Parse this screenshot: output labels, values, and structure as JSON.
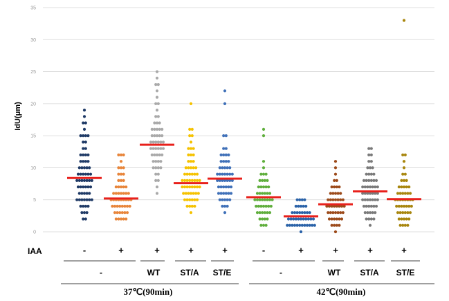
{
  "chart_data": {
    "type": "scatter",
    "ylabel": "IdU(μm)",
    "ylim": [
      0,
      35
    ],
    "yticks": [
      "0",
      "5",
      "10",
      "15",
      "20",
      "25",
      "30",
      "35"
    ],
    "grid": true,
    "row_label": "IAA",
    "groups": [
      {
        "iaa": "-",
        "genotype": "-",
        "condition": "37℃(90min)",
        "color": "#1f3a66",
        "mean": 8.4,
        "values": [
          19,
          18,
          17,
          17,
          16,
          15,
          15,
          15,
          15,
          14,
          14,
          13,
          13,
          12,
          12,
          12,
          12,
          11,
          11,
          11,
          11,
          10,
          10,
          10,
          10,
          10,
          9,
          9,
          9,
          9,
          9,
          9,
          8,
          8,
          8,
          8,
          8,
          8,
          8,
          7,
          7,
          7,
          7,
          7,
          7,
          6,
          6,
          6,
          6,
          6,
          5,
          5,
          5,
          5,
          5,
          5,
          5,
          4,
          4,
          4,
          4,
          3,
          3,
          3,
          2,
          2
        ]
      },
      {
        "iaa": "+",
        "genotype": "-",
        "condition": "37℃(90min)",
        "color": "#e8853a",
        "mean": 5.2,
        "values": [
          12,
          12,
          12,
          11,
          10,
          10,
          10,
          9,
          9,
          9,
          8,
          8,
          8,
          7,
          7,
          7,
          7,
          7,
          6,
          6,
          6,
          6,
          6,
          6,
          6,
          5,
          5,
          5,
          5,
          5,
          5,
          5,
          5,
          5,
          4,
          4,
          4,
          4,
          4,
          4,
          4,
          4,
          3,
          3,
          3,
          3,
          3,
          3,
          2,
          2,
          2,
          2,
          2
        ]
      },
      {
        "iaa": "+",
        "genotype": "WT",
        "condition": "37℃(90min)",
        "color": "#a9a9a9",
        "mean": 13.6,
        "values": [
          25,
          24,
          23,
          23,
          22,
          21,
          20,
          20,
          19,
          18,
          18,
          17,
          17,
          17,
          16,
          16,
          16,
          16,
          16,
          15,
          15,
          15,
          15,
          15,
          14,
          14,
          14,
          14,
          14,
          14,
          13,
          13,
          13,
          13,
          13,
          13,
          12,
          12,
          12,
          12,
          12,
          11,
          11,
          11,
          11,
          10,
          10,
          10,
          10,
          9,
          9,
          8,
          8,
          7,
          6
        ]
      },
      {
        "iaa": "+",
        "genotype": "ST/A",
        "condition": "37℃(90min)",
        "color": "#f5c200",
        "mean": 7.6,
        "values": [
          20,
          16,
          16,
          15,
          15,
          14,
          13,
          13,
          13,
          12,
          12,
          12,
          11,
          11,
          11,
          10,
          10,
          10,
          10,
          10,
          9,
          9,
          9,
          9,
          9,
          9,
          8,
          8,
          8,
          8,
          8,
          8,
          8,
          8,
          7,
          7,
          7,
          7,
          7,
          7,
          7,
          7,
          6,
          6,
          6,
          6,
          6,
          6,
          6,
          5,
          5,
          5,
          5,
          5,
          5,
          4,
          4,
          4,
          4,
          3
        ]
      },
      {
        "iaa": "+",
        "genotype": "ST/E",
        "condition": "37℃(90min)",
        "color": "#3f70b8",
        "mean": 8.3,
        "values": [
          22,
          20,
          15,
          15,
          13,
          13,
          12,
          12,
          12,
          12,
          11,
          11,
          11,
          11,
          10,
          10,
          10,
          10,
          10,
          9,
          9,
          9,
          9,
          9,
          9,
          9,
          8,
          8,
          8,
          8,
          8,
          8,
          8,
          7,
          7,
          7,
          7,
          7,
          7,
          6,
          6,
          6,
          6,
          6,
          6,
          5,
          5,
          5,
          5,
          5,
          4,
          4,
          4,
          3
        ]
      },
      {
        "iaa": "-",
        "genotype": "-",
        "condition": "42℃(90min)",
        "color": "#5fae3c",
        "mean": 5.4,
        "values": [
          16,
          15,
          11,
          10,
          9,
          9,
          9,
          8,
          8,
          8,
          8,
          7,
          7,
          7,
          7,
          7,
          6,
          6,
          6,
          6,
          6,
          6,
          5,
          5,
          5,
          5,
          5,
          5,
          5,
          5,
          4,
          4,
          4,
          4,
          4,
          4,
          4,
          3,
          3,
          3,
          3,
          3,
          3,
          2,
          2,
          2,
          2,
          1,
          1,
          1
        ]
      },
      {
        "iaa": "+",
        "genotype": "-",
        "condition": "42℃(90min)",
        "color": "#2a62a8",
        "mean": 2.4,
        "values": [
          5,
          5,
          5,
          5,
          4,
          4,
          4,
          4,
          4,
          3,
          3,
          3,
          3,
          3,
          3,
          3,
          3,
          2,
          2,
          2,
          2,
          2,
          2,
          2,
          2,
          2,
          2,
          2,
          1,
          1,
          1,
          1,
          1,
          1,
          1,
          1,
          1,
          1,
          1,
          1,
          0
        ]
      },
      {
        "iaa": "+",
        "genotype": "WT",
        "condition": "42℃(90min)",
        "color": "#9c4a1a",
        "mean": 4.3,
        "values": [
          11,
          10,
          9,
          8,
          8,
          7,
          7,
          7,
          7,
          6,
          6,
          6,
          6,
          6,
          5,
          5,
          5,
          5,
          5,
          5,
          5,
          4,
          4,
          4,
          4,
          4,
          4,
          4,
          4,
          3,
          3,
          3,
          3,
          3,
          3,
          3,
          2,
          2,
          2,
          2,
          2,
          2,
          1,
          1,
          1,
          1,
          0
        ]
      },
      {
        "iaa": "+",
        "genotype": "ST/A",
        "condition": "42℃(90min)",
        "color": "#7a7a7a",
        "mean": 6.3,
        "values": [
          13,
          13,
          12,
          12,
          11,
          11,
          10,
          10,
          10,
          9,
          9,
          9,
          9,
          8,
          8,
          8,
          8,
          8,
          8,
          7,
          7,
          7,
          7,
          7,
          7,
          7,
          6,
          6,
          6,
          6,
          6,
          6,
          6,
          5,
          5,
          5,
          5,
          5,
          5,
          5,
          4,
          4,
          4,
          4,
          4,
          4,
          3,
          3,
          3,
          3,
          3,
          2,
          2,
          2,
          2,
          1
        ]
      },
      {
        "iaa": "+",
        "genotype": "ST/E",
        "condition": "42℃(90min)",
        "color": "#a8860e",
        "mean": 5.1,
        "values": [
          33,
          12,
          12,
          11,
          10,
          9,
          9,
          8,
          8,
          8,
          7,
          7,
          7,
          7,
          7,
          6,
          6,
          6,
          6,
          6,
          6,
          5,
          5,
          5,
          5,
          5,
          5,
          5,
          5,
          4,
          4,
          4,
          4,
          4,
          4,
          4,
          3,
          3,
          3,
          3,
          3,
          3,
          2,
          2,
          2,
          2,
          2,
          1,
          1,
          1,
          1
        ]
      }
    ],
    "mean_marker_color": "#e8201b"
  },
  "labels": {
    "ylabel": "IdU(μm)",
    "row_label": "IAA",
    "g37": [
      "-",
      "WT",
      "ST/A",
      "ST/E"
    ],
    "g42": [
      "-",
      "WT",
      "ST/A",
      "ST/E"
    ],
    "cond37": "37℃(90min)",
    "cond42": "42℃(90min)"
  }
}
